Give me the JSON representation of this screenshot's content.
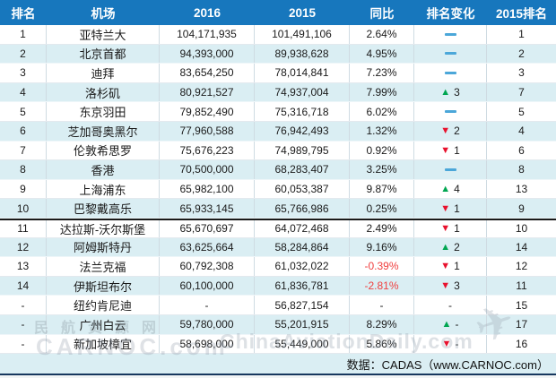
{
  "table": {
    "columns": [
      "排名",
      "机场",
      "2016",
      "2015",
      "同比",
      "排名变化",
      "2015排名"
    ],
    "rows": [
      {
        "rank": "1",
        "airport": "亚特兰大",
        "v2016": "104,171,935",
        "v2015": "101,491,106",
        "yoy": "2.64%",
        "yoy_negative": false,
        "change_dir": "same",
        "change_amount": "",
        "rank2015": "1"
      },
      {
        "rank": "2",
        "airport": "北京首都",
        "v2016": "94,393,000",
        "v2015": "89,938,628",
        "yoy": "4.95%",
        "yoy_negative": false,
        "change_dir": "same",
        "change_amount": "",
        "rank2015": "2"
      },
      {
        "rank": "3",
        "airport": "迪拜",
        "v2016": "83,654,250",
        "v2015": "78,014,841",
        "yoy": "7.23%",
        "yoy_negative": false,
        "change_dir": "same",
        "change_amount": "",
        "rank2015": "3"
      },
      {
        "rank": "4",
        "airport": "洛杉矶",
        "v2016": "80,921,527",
        "v2015": "74,937,004",
        "yoy": "7.99%",
        "yoy_negative": false,
        "change_dir": "up",
        "change_amount": "3",
        "rank2015": "7"
      },
      {
        "rank": "5",
        "airport": "东京羽田",
        "v2016": "79,852,490",
        "v2015": "75,316,718",
        "yoy": "6.02%",
        "yoy_negative": false,
        "change_dir": "same",
        "change_amount": "",
        "rank2015": "5"
      },
      {
        "rank": "6",
        "airport": "芝加哥奥黑尔",
        "v2016": "77,960,588",
        "v2015": "76,942,493",
        "yoy": "1.32%",
        "yoy_negative": false,
        "change_dir": "down",
        "change_amount": "2",
        "rank2015": "4"
      },
      {
        "rank": "7",
        "airport": "伦敦希思罗",
        "v2016": "75,676,223",
        "v2015": "74,989,795",
        "yoy": "0.92%",
        "yoy_negative": false,
        "change_dir": "down",
        "change_amount": "1",
        "rank2015": "6"
      },
      {
        "rank": "8",
        "airport": "香港",
        "v2016": "70,500,000",
        "v2015": "68,283,407",
        "yoy": "3.25%",
        "yoy_negative": false,
        "change_dir": "same",
        "change_amount": "",
        "rank2015": "8"
      },
      {
        "rank": "9",
        "airport": "上海浦东",
        "v2016": "65,982,100",
        "v2015": "60,053,387",
        "yoy": "9.87%",
        "yoy_negative": false,
        "change_dir": "up",
        "change_amount": "4",
        "rank2015": "13"
      },
      {
        "rank": "10",
        "airport": "巴黎戴高乐",
        "v2016": "65,933,145",
        "v2015": "65,766,986",
        "yoy": "0.25%",
        "yoy_negative": false,
        "change_dir": "down",
        "change_amount": "1",
        "rank2015": "9"
      },
      {
        "rank": "11",
        "airport": "达拉斯-沃尔斯堡",
        "v2016": "65,670,697",
        "v2015": "64,072,468",
        "yoy": "2.49%",
        "yoy_negative": false,
        "change_dir": "down",
        "change_amount": "1",
        "rank2015": "10"
      },
      {
        "rank": "12",
        "airport": "阿姆斯特丹",
        "v2016": "63,625,664",
        "v2015": "58,284,864",
        "yoy": "9.16%",
        "yoy_negative": false,
        "change_dir": "up",
        "change_amount": "2",
        "rank2015": "14"
      },
      {
        "rank": "13",
        "airport": "法兰克福",
        "v2016": "60,792,308",
        "v2015": "61,032,022",
        "yoy": "-0.39%",
        "yoy_negative": true,
        "change_dir": "down",
        "change_amount": "1",
        "rank2015": "12"
      },
      {
        "rank": "14",
        "airport": "伊斯坦布尔",
        "v2016": "60,100,000",
        "v2015": "61,836,781",
        "yoy": "-2.81%",
        "yoy_negative": true,
        "change_dir": "down",
        "change_amount": "3",
        "rank2015": "11"
      },
      {
        "rank": "-",
        "airport": "纽约肯尼迪",
        "v2016": "-",
        "v2015": "56,827,154",
        "yoy": "-",
        "yoy_negative": false,
        "change_dir": "dash",
        "change_amount": "",
        "rank2015": "15"
      },
      {
        "rank": "-",
        "airport": "广州白云",
        "v2016": "59,780,000",
        "v2015": "55,201,915",
        "yoy": "8.29%",
        "yoy_negative": false,
        "change_dir": "up",
        "change_amount": "-",
        "rank2015": "17"
      },
      {
        "rank": "-",
        "airport": "新加坡樟宜",
        "v2016": "58,698,000",
        "v2015": "55,449,000",
        "yoy": "5.86%",
        "yoy_negative": false,
        "change_dir": "down",
        "change_amount": "-",
        "rank2015": "16"
      }
    ],
    "separator_above_row_index": 10
  },
  "source": {
    "label": "数据：CADAS（www.CARNOC.com）"
  },
  "watermarks": {
    "left_line1": "民航资源网",
    "left_line2": "CARNOC.com",
    "right": "ChinaAviationDaily.com",
    "plane_glyph": "✈"
  },
  "icons": {
    "up_triangle": "▲",
    "down_triangle": "▼",
    "plain_dash": "-"
  },
  "colors": {
    "header_bg": "#1777bd",
    "stripe": "#daeef3",
    "up": "#00a651",
    "down": "#e8112d",
    "same_dash": "#4ba7d9",
    "negative": "#f04040",
    "source_bg": "#daeef3",
    "bottom_line": "#17375e"
  }
}
